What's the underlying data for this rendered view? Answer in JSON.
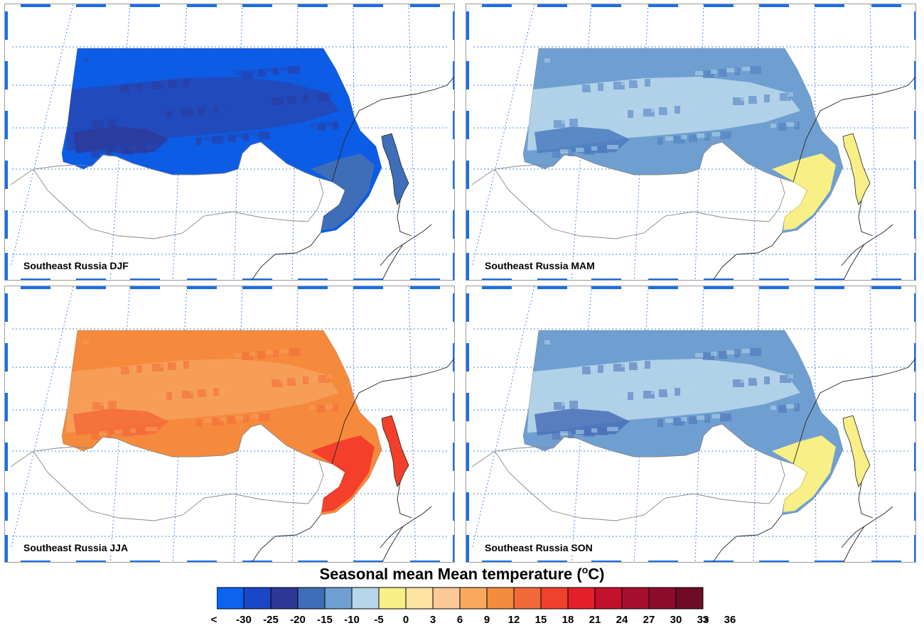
{
  "title": {
    "main": "Seasonal mean Mean temperature (",
    "degree": "o",
    "unit_tail": "C)"
  },
  "panels": [
    {
      "id": "djf",
      "label": "Southeast Russia DJF",
      "fill": {
        "base": "#0c5ce5",
        "mid": "#2348b8",
        "cold": "#2d3a9a",
        "coast": "#3f6eb8"
      }
    },
    {
      "id": "mam",
      "label": "Southeast Russia MAM",
      "fill": {
        "base": "#6f9fd0",
        "mid": "#b7d6ea",
        "cold": "#4c7cc0",
        "coast": "#f8ef86"
      }
    },
    {
      "id": "jja",
      "label": "Southeast Russia JJA",
      "fill": {
        "base": "#f58a3c",
        "mid": "#f6a05a",
        "cold": "#f46a3b",
        "coast": "#f4402a"
      }
    },
    {
      "id": "son",
      "label": "Southeast Russia SON",
      "fill": {
        "base": "#6f9fd0",
        "mid": "#b7d6ea",
        "cold": "#4a70b8",
        "coast": "#f8ef86"
      }
    }
  ],
  "colorbar": {
    "colors": [
      "#0b63f0",
      "#1b46c7",
      "#2b3896",
      "#3f6eb8",
      "#6f9fd0",
      "#b7d6ea",
      "#f8ef86",
      "#fde3a1",
      "#fbc897",
      "#f8a95d",
      "#f48c3e",
      "#f26a3a",
      "#f0412c",
      "#e4202a",
      "#c3102c",
      "#a80e2d",
      "#8c0b2d",
      "#6f0b25"
    ],
    "labels": [
      "<",
      "-30",
      "-25",
      "-20",
      "-15",
      "-10",
      "-5",
      "0",
      "3",
      "6",
      "9",
      "12",
      "15",
      "18",
      "21",
      "24",
      "27",
      "30",
      "33",
      "36",
      ">"
    ]
  }
}
